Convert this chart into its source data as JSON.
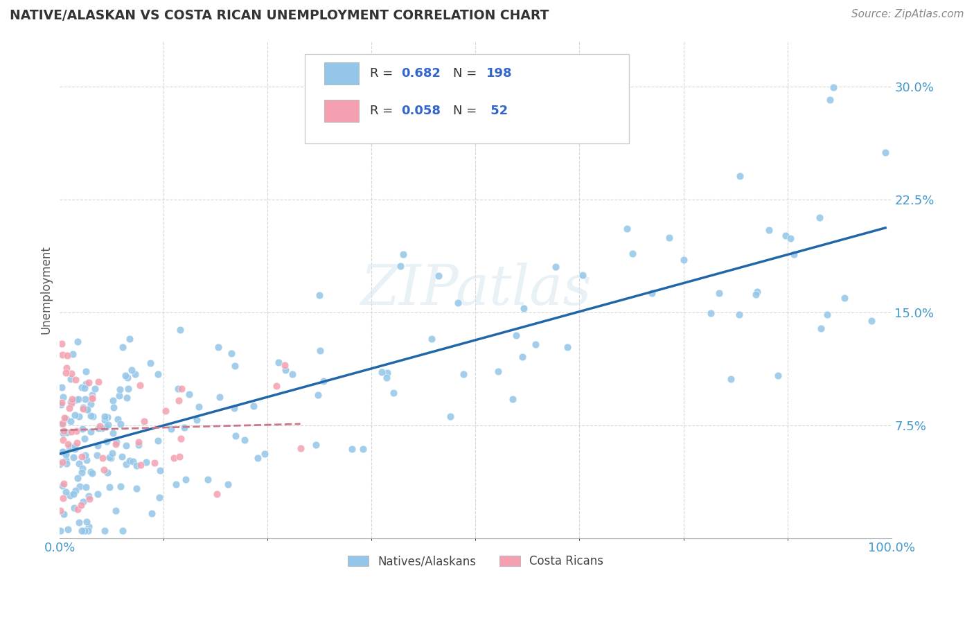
{
  "title": "NATIVE/ALASKAN VS COSTA RICAN UNEMPLOYMENT CORRELATION CHART",
  "source": "Source: ZipAtlas.com",
  "ylabel": "Unemployment",
  "ytick_labels": [
    "7.5%",
    "15.0%",
    "22.5%",
    "30.0%"
  ],
  "ytick_values": [
    7.5,
    15.0,
    22.5,
    30.0
  ],
  "ylim": [
    0,
    33
  ],
  "xlim": [
    0,
    100
  ],
  "legend_r1_black": "R = ",
  "legend_r1_blue": "0.682",
  "legend_n1_black": "N = ",
  "legend_n1_blue": "198",
  "legend_r2_black": "R = ",
  "legend_r2_blue": "0.058",
  "legend_n2_black": "N = ",
  "legend_n2_blue": " 52",
  "blue_color": "#93c6e8",
  "pink_color": "#f4a0b0",
  "blue_line_color": "#2266aa",
  "pink_line_color": "#cc7788",
  "blue_line_style": "-",
  "pink_line_style": "--",
  "watermark": "ZIPatlas",
  "bg_color": "#ffffff",
  "grid_color": "#cccccc",
  "tick_color": "#4499cc",
  "label_color": "#555555",
  "title_color": "#333333"
}
